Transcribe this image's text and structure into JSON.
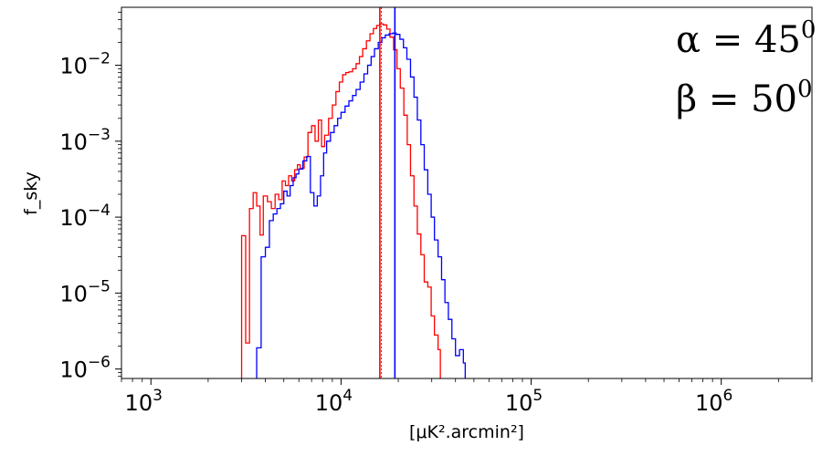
{
  "chart_data": {
    "type": "line",
    "x_scale": "log",
    "y_scale": "log",
    "xlim": [
      700,
      3000000
    ],
    "ylim": [
      7.5e-07,
      0.058
    ],
    "x_ticks": [
      {
        "value": 1000,
        "base": "10",
        "exp": "3"
      },
      {
        "value": 10000,
        "base": "10",
        "exp": "4"
      },
      {
        "value": 100000,
        "base": "10",
        "exp": "5"
      },
      {
        "value": 1000000,
        "base": "10",
        "exp": "6"
      }
    ],
    "y_ticks": [
      {
        "value": 1e-06,
        "base": "10",
        "exp": "−6"
      },
      {
        "value": 1e-05,
        "base": "10",
        "exp": "−5"
      },
      {
        "value": 0.0001,
        "base": "10",
        "exp": "−4"
      },
      {
        "value": 0.001,
        "base": "10",
        "exp": "−3"
      },
      {
        "value": 0.01,
        "base": "10",
        "exp": "−2"
      }
    ],
    "xlabel": "[μK².arcmin²]",
    "ylabel": "f_sky",
    "annotations": [
      {
        "text": "α = 45",
        "sup": "0"
      },
      {
        "text": "β = 50",
        "sup": "0"
      }
    ],
    "grid": false,
    "series": [
      {
        "color": "#ff0000",
        "points": [
          [
            3000,
            1e-07
          ],
          [
            3000,
            5.7e-05
          ],
          [
            3150,
            5.7e-05
          ],
          [
            3150,
            2.2e-06
          ],
          [
            3300,
            2.2e-06
          ],
          [
            3300,
            0.00013
          ],
          [
            3450,
            0.00013
          ],
          [
            3450,
            0.00021
          ],
          [
            3600,
            0.00021
          ],
          [
            3600,
            0.00014
          ],
          [
            3750,
            0.00014
          ],
          [
            3750,
            5.8e-05
          ],
          [
            3900,
            5.8e-05
          ],
          [
            3900,
            0.00019
          ],
          [
            4100,
            0.00019
          ],
          [
            4100,
            0.00016
          ],
          [
            4300,
            0.00016
          ],
          [
            4300,
            0.00013
          ],
          [
            4500,
            0.00013
          ],
          [
            4500,
            0.0002
          ],
          [
            4700,
            0.0002
          ],
          [
            4700,
            0.00017
          ],
          [
            4900,
            0.00017
          ],
          [
            4900,
            0.0003
          ],
          [
            5100,
            0.0003
          ],
          [
            5100,
            0.00026
          ],
          [
            5300,
            0.00026
          ],
          [
            5300,
            0.00035
          ],
          [
            5500,
            0.00035
          ],
          [
            5500,
            0.0003
          ],
          [
            5700,
            0.0003
          ],
          [
            5700,
            0.00042
          ],
          [
            5900,
            0.00042
          ],
          [
            5900,
            0.00049
          ],
          [
            6100,
            0.00049
          ],
          [
            6100,
            0.00044
          ],
          [
            6400,
            0.00044
          ],
          [
            6400,
            0.00062
          ],
          [
            6700,
            0.00062
          ],
          [
            6700,
            0.0013
          ],
          [
            7000,
            0.0013
          ],
          [
            7000,
            0.0016
          ],
          [
            7300,
            0.0016
          ],
          [
            7300,
            0.001
          ],
          [
            7600,
            0.001
          ],
          [
            7600,
            0.0019
          ],
          [
            7900,
            0.0019
          ],
          [
            7900,
            0.00085
          ],
          [
            8200,
            0.00085
          ],
          [
            8200,
            0.0012
          ],
          [
            8600,
            0.0012
          ],
          [
            8600,
            0.002
          ],
          [
            9000,
            0.002
          ],
          [
            9000,
            0.003
          ],
          [
            9400,
            0.003
          ],
          [
            9400,
            0.0045
          ],
          [
            9800,
            0.0045
          ],
          [
            9800,
            0.006
          ],
          [
            10200,
            0.006
          ],
          [
            10200,
            0.0075
          ],
          [
            10600,
            0.0075
          ],
          [
            10600,
            0.008
          ],
          [
            11000,
            0.008
          ],
          [
            11000,
            0.0082
          ],
          [
            11500,
            0.0082
          ],
          [
            11500,
            0.009
          ],
          [
            12000,
            0.009
          ],
          [
            12000,
            0.0105
          ],
          [
            12500,
            0.0105
          ],
          [
            12500,
            0.013
          ],
          [
            13000,
            0.013
          ],
          [
            13000,
            0.0165
          ],
          [
            13600,
            0.0165
          ],
          [
            13600,
            0.021
          ],
          [
            14200,
            0.021
          ],
          [
            14200,
            0.026
          ],
          [
            14800,
            0.026
          ],
          [
            14800,
            0.0305
          ],
          [
            15400,
            0.0305
          ],
          [
            15400,
            0.0335
          ],
          [
            16000,
            0.0335
          ],
          [
            16000,
            0.035
          ],
          [
            16700,
            0.035
          ],
          [
            16700,
            0.034
          ],
          [
            17400,
            0.034
          ],
          [
            17400,
            0.03
          ],
          [
            18100,
            0.03
          ],
          [
            18100,
            0.0235
          ],
          [
            18900,
            0.0235
          ],
          [
            18900,
            0.016
          ],
          [
            19700,
            0.016
          ],
          [
            19700,
            0.009
          ],
          [
            20500,
            0.009
          ],
          [
            20500,
            0.005
          ],
          [
            21400,
            0.005
          ],
          [
            21400,
            0.0022
          ],
          [
            22300,
            0.0022
          ],
          [
            22300,
            0.0009
          ],
          [
            23200,
            0.0009
          ],
          [
            23200,
            0.00035
          ],
          [
            24200,
            0.00035
          ],
          [
            24200,
            0.00014
          ],
          [
            25200,
            0.00014
          ],
          [
            25200,
            6e-05
          ],
          [
            26300,
            6e-05
          ],
          [
            26300,
            3.2e-05
          ],
          [
            27400,
            3.2e-05
          ],
          [
            27400,
            1.4e-05
          ],
          [
            28600,
            1.4e-05
          ],
          [
            28600,
            1.2e-05
          ],
          [
            29800,
            1.2e-05
          ],
          [
            29800,
            5e-06
          ],
          [
            31000,
            5e-06
          ],
          [
            31000,
            2.8e-06
          ],
          [
            32400,
            2.8e-06
          ],
          [
            32400,
            1.8e-06
          ],
          [
            33300,
            1.8e-06
          ],
          [
            33300,
            1e-07
          ]
        ]
      },
      {
        "color": "#0000ff",
        "points": [
          [
            3600,
            1e-07
          ],
          [
            3600,
            1.9e-06
          ],
          [
            3800,
            1.9e-06
          ],
          [
            3800,
            3e-05
          ],
          [
            4000,
            3e-05
          ],
          [
            4000,
            4e-05
          ],
          [
            4200,
            4e-05
          ],
          [
            4200,
            9e-05
          ],
          [
            4400,
            9e-05
          ],
          [
            4400,
            0.00011
          ],
          [
            4600,
            0.00011
          ],
          [
            4600,
            0.00013
          ],
          [
            4800,
            0.00013
          ],
          [
            4800,
            0.00015
          ],
          [
            5000,
            0.00015
          ],
          [
            5000,
            0.00022
          ],
          [
            5200,
            0.00022
          ],
          [
            5200,
            0.00019
          ],
          [
            5400,
            0.00019
          ],
          [
            5400,
            0.00026
          ],
          [
            5600,
            0.00026
          ],
          [
            5600,
            0.00033
          ],
          [
            5800,
            0.00033
          ],
          [
            5800,
            0.00037
          ],
          [
            6000,
            0.00037
          ],
          [
            6000,
            0.00043
          ],
          [
            6300,
            0.00043
          ],
          [
            6300,
            0.00055
          ],
          [
            6600,
            0.00055
          ],
          [
            6600,
            0.00063
          ],
          [
            6900,
            0.00063
          ],
          [
            6900,
            0.00021
          ],
          [
            7200,
            0.00021
          ],
          [
            7200,
            0.00014
          ],
          [
            7500,
            0.00014
          ],
          [
            7500,
            0.00019
          ],
          [
            7800,
            0.00019
          ],
          [
            7800,
            0.00035
          ],
          [
            8100,
            0.00035
          ],
          [
            8100,
            0.0007
          ],
          [
            8400,
            0.0007
          ],
          [
            8400,
            0.001
          ],
          [
            8800,
            0.001
          ],
          [
            8800,
            0.0013
          ],
          [
            9200,
            0.0013
          ],
          [
            9200,
            0.0016
          ],
          [
            9600,
            0.0016
          ],
          [
            9600,
            0.002
          ],
          [
            10000,
            0.002
          ],
          [
            10000,
            0.0024
          ],
          [
            10500,
            0.0024
          ],
          [
            10500,
            0.0029
          ],
          [
            11000,
            0.0029
          ],
          [
            11000,
            0.0034
          ],
          [
            11500,
            0.0034
          ],
          [
            11500,
            0.004
          ],
          [
            12000,
            0.004
          ],
          [
            12000,
            0.0048
          ],
          [
            12600,
            0.0048
          ],
          [
            12600,
            0.006
          ],
          [
            13200,
            0.006
          ],
          [
            13200,
            0.0077
          ],
          [
            13800,
            0.0077
          ],
          [
            13800,
            0.01
          ],
          [
            14400,
            0.01
          ],
          [
            14400,
            0.013
          ],
          [
            15000,
            0.013
          ],
          [
            15000,
            0.0165
          ],
          [
            15700,
            0.0165
          ],
          [
            15700,
            0.02
          ],
          [
            16400,
            0.02
          ],
          [
            16400,
            0.023
          ],
          [
            17100,
            0.023
          ],
          [
            17100,
            0.025
          ],
          [
            17900,
            0.025
          ],
          [
            17900,
            0.026
          ],
          [
            18700,
            0.026
          ],
          [
            18700,
            0.0265
          ],
          [
            19500,
            0.0265
          ],
          [
            19500,
            0.0255
          ],
          [
            20400,
            0.0255
          ],
          [
            20400,
            0.022
          ],
          [
            21300,
            0.022
          ],
          [
            21300,
            0.017
          ],
          [
            22200,
            0.017
          ],
          [
            22200,
            0.012
          ],
          [
            23200,
            0.012
          ],
          [
            23200,
            0.007
          ],
          [
            24200,
            0.007
          ],
          [
            24200,
            0.0038
          ],
          [
            25200,
            0.0038
          ],
          [
            25200,
            0.0019
          ],
          [
            26300,
            0.0019
          ],
          [
            26300,
            0.0009
          ],
          [
            27400,
            0.0009
          ],
          [
            27400,
            0.00042
          ],
          [
            28600,
            0.00042
          ],
          [
            28600,
            0.0002
          ],
          [
            29800,
            0.0002
          ],
          [
            29800,
            0.0001
          ],
          [
            31000,
            0.0001
          ],
          [
            31000,
            5e-05
          ],
          [
            32400,
            5e-05
          ],
          [
            32400,
            3e-05
          ],
          [
            33800,
            3e-05
          ],
          [
            33800,
            1.5e-05
          ],
          [
            35200,
            1.5e-05
          ],
          [
            35200,
            7.5e-06
          ],
          [
            36700,
            7.5e-06
          ],
          [
            36700,
            4.5e-06
          ],
          [
            38300,
            4.5e-06
          ],
          [
            38300,
            2.5e-06
          ],
          [
            40000,
            2.5e-06
          ],
          [
            40000,
            1.5e-06
          ],
          [
            42000,
            1.5e-06
          ],
          [
            42000,
            1.8e-06
          ],
          [
            44000,
            1.8e-06
          ],
          [
            44000,
            1.2e-06
          ],
          [
            45000,
            1.2e-06
          ],
          [
            45000,
            1e-07
          ]
        ]
      }
    ],
    "vlines": [
      {
        "x": 16000,
        "color": "#ff0000",
        "style": "solid"
      },
      {
        "x": 16300,
        "color": "#ff0000",
        "style": "dotted"
      },
      {
        "x": 19200,
        "color": "#0000ff",
        "style": "solid"
      }
    ]
  }
}
